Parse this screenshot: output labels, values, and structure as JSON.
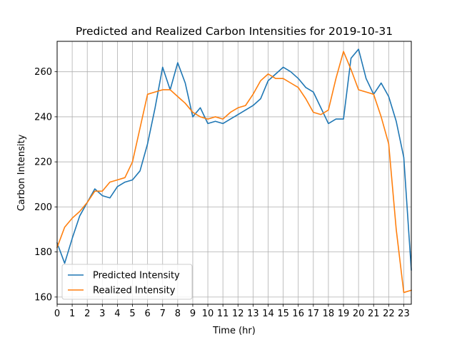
{
  "chart_data": {
    "type": "line",
    "title": "Predicted and Realized Carbon Intensities for 2019-10-31",
    "xlabel": "Time (hr)",
    "ylabel": "Carbon Intensity",
    "xlim": [
      0,
      23.5
    ],
    "ylim": [
      156.8,
      273.5
    ],
    "grid": true,
    "legend_position": "lower-left",
    "x_ticks": [
      0,
      1,
      2,
      3,
      4,
      5,
      6,
      7,
      8,
      9,
      10,
      11,
      12,
      13,
      14,
      15,
      16,
      17,
      18,
      19,
      20,
      21,
      22,
      23
    ],
    "y_ticks": [
      160,
      180,
      200,
      220,
      240,
      260
    ],
    "x": [
      0,
      0.5,
      1,
      1.5,
      2,
      2.5,
      3,
      3.5,
      4,
      4.5,
      5,
      5.5,
      6,
      6.5,
      7,
      7.5,
      8,
      8.5,
      9,
      9.5,
      10,
      10.5,
      11,
      11.5,
      12,
      12.5,
      13,
      13.5,
      14,
      14.5,
      15,
      15.5,
      16,
      16.5,
      17,
      17.5,
      18,
      18.5,
      19,
      19.5,
      20,
      20.5,
      21,
      21.5,
      22,
      22.5,
      23,
      23.5
    ],
    "series": [
      {
        "name": "Predicted Intensity",
        "color": "#1f77b4",
        "values": [
          184,
          175,
          186,
          196,
          202,
          208,
          205,
          204,
          209,
          211,
          212,
          216,
          228,
          244,
          262,
          252,
          264,
          255,
          240,
          244,
          237,
          238,
          237,
          239,
          241,
          243,
          245,
          248,
          256,
          259,
          262,
          260,
          257,
          253,
          251,
          244,
          237,
          239,
          239,
          266,
          270,
          257,
          250,
          255,
          249,
          238,
          222,
          172
        ]
      },
      {
        "name": "Realized Intensity",
        "color": "#ff7f0e",
        "values": [
          182,
          191,
          195,
          198,
          202,
          207,
          207,
          211,
          212,
          213,
          220,
          235,
          250,
          251,
          252,
          252,
          249,
          246,
          242,
          240,
          239,
          240,
          239,
          242,
          244,
          245,
          250,
          256,
          259,
          257,
          257,
          255,
          253,
          248,
          242,
          241,
          243,
          257,
          269,
          261,
          252,
          251,
          250,
          240,
          228,
          190,
          162,
          163
        ]
      }
    ]
  }
}
